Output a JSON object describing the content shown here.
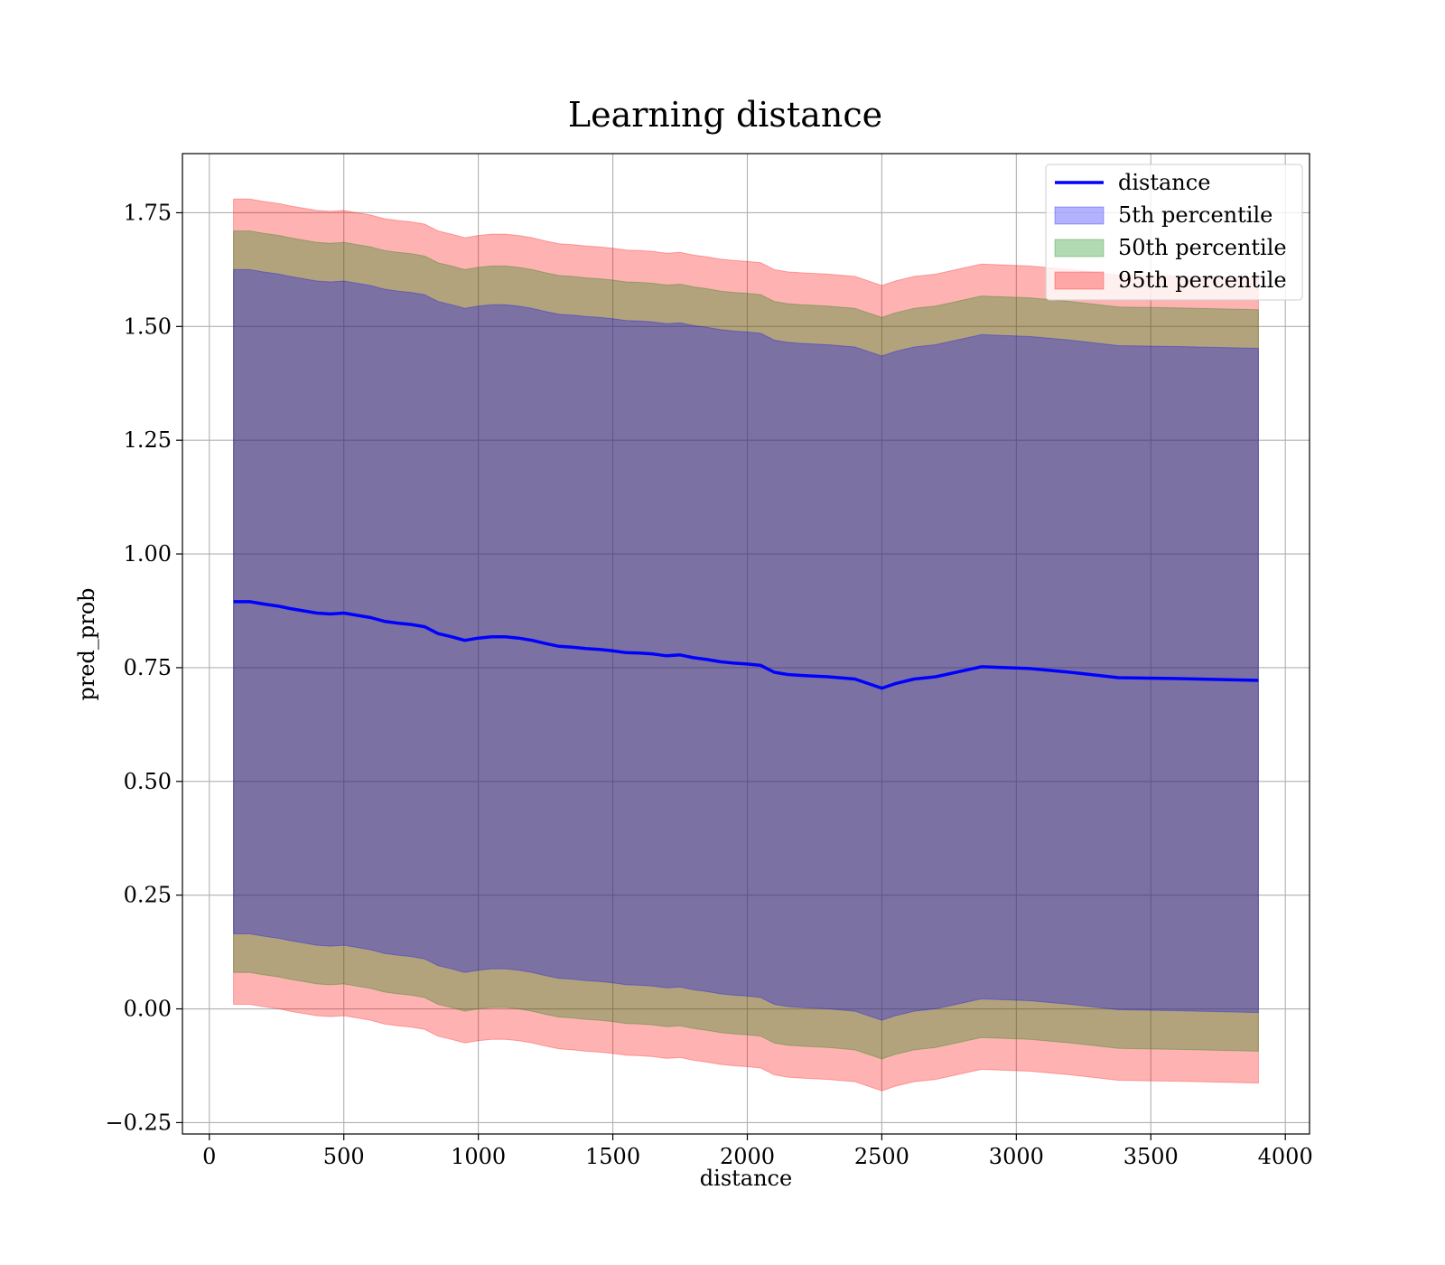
{
  "chart_data": {
    "type": "area",
    "title": "Learning distance",
    "xlabel": "distance",
    "ylabel": "pred_prob",
    "xlim": [
      -100,
      4090
    ],
    "ylim": [
      -0.275,
      1.88
    ],
    "xticks": [
      0,
      500,
      1000,
      1500,
      2000,
      2500,
      3000,
      3500,
      4000
    ],
    "xtick_labels": [
      "0",
      "500",
      "1000",
      "1500",
      "2000",
      "2500",
      "3000",
      "3500",
      "4000"
    ],
    "yticks": [
      -0.25,
      0.0,
      0.25,
      0.5,
      0.75,
      1.0,
      1.25,
      1.5,
      1.75
    ],
    "ytick_labels": [
      "−0.25",
      "0.00",
      "0.25",
      "0.50",
      "0.75",
      "1.00",
      "1.25",
      "1.50",
      "1.75"
    ],
    "grid": true,
    "legend_position": "top-right",
    "x": [
      90,
      150,
      200,
      260,
      300,
      350,
      400,
      450,
      500,
      550,
      600,
      650,
      700,
      750,
      800,
      850,
      900,
      950,
      1000,
      1050,
      1100,
      1150,
      1200,
      1250,
      1300,
      1350,
      1400,
      1450,
      1500,
      1550,
      1600,
      1650,
      1700,
      1750,
      1800,
      1850,
      1900,
      1950,
      2000,
      2050,
      2100,
      2150,
      2200,
      2300,
      2400,
      2500,
      2550,
      2620,
      2700,
      2870,
      3050,
      3200,
      3380,
      3600,
      3900
    ],
    "series": [
      {
        "name": "distance",
        "style": "line",
        "color": "#0000ff",
        "values": [
          0.895,
          0.895,
          0.89,
          0.885,
          0.88,
          0.875,
          0.87,
          0.868,
          0.87,
          0.865,
          0.86,
          0.852,
          0.848,
          0.845,
          0.84,
          0.825,
          0.818,
          0.81,
          0.815,
          0.818,
          0.818,
          0.815,
          0.81,
          0.803,
          0.797,
          0.795,
          0.792,
          0.79,
          0.787,
          0.783,
          0.782,
          0.78,
          0.776,
          0.778,
          0.772,
          0.768,
          0.763,
          0.76,
          0.758,
          0.755,
          0.74,
          0.735,
          0.733,
          0.73,
          0.725,
          0.705,
          0.715,
          0.725,
          0.73,
          0.752,
          0.748,
          0.74,
          0.728,
          0.726,
          0.722
        ]
      },
      {
        "name": "5th percentile",
        "style": "band",
        "color": "#0000ff",
        "offset": 0.73
      },
      {
        "name": "50th percentile",
        "style": "band",
        "color": "#008000",
        "offset": 0.815
      },
      {
        "name": "95th percentile",
        "style": "band",
        "color": "#ff0000",
        "offset": 0.885
      }
    ]
  }
}
